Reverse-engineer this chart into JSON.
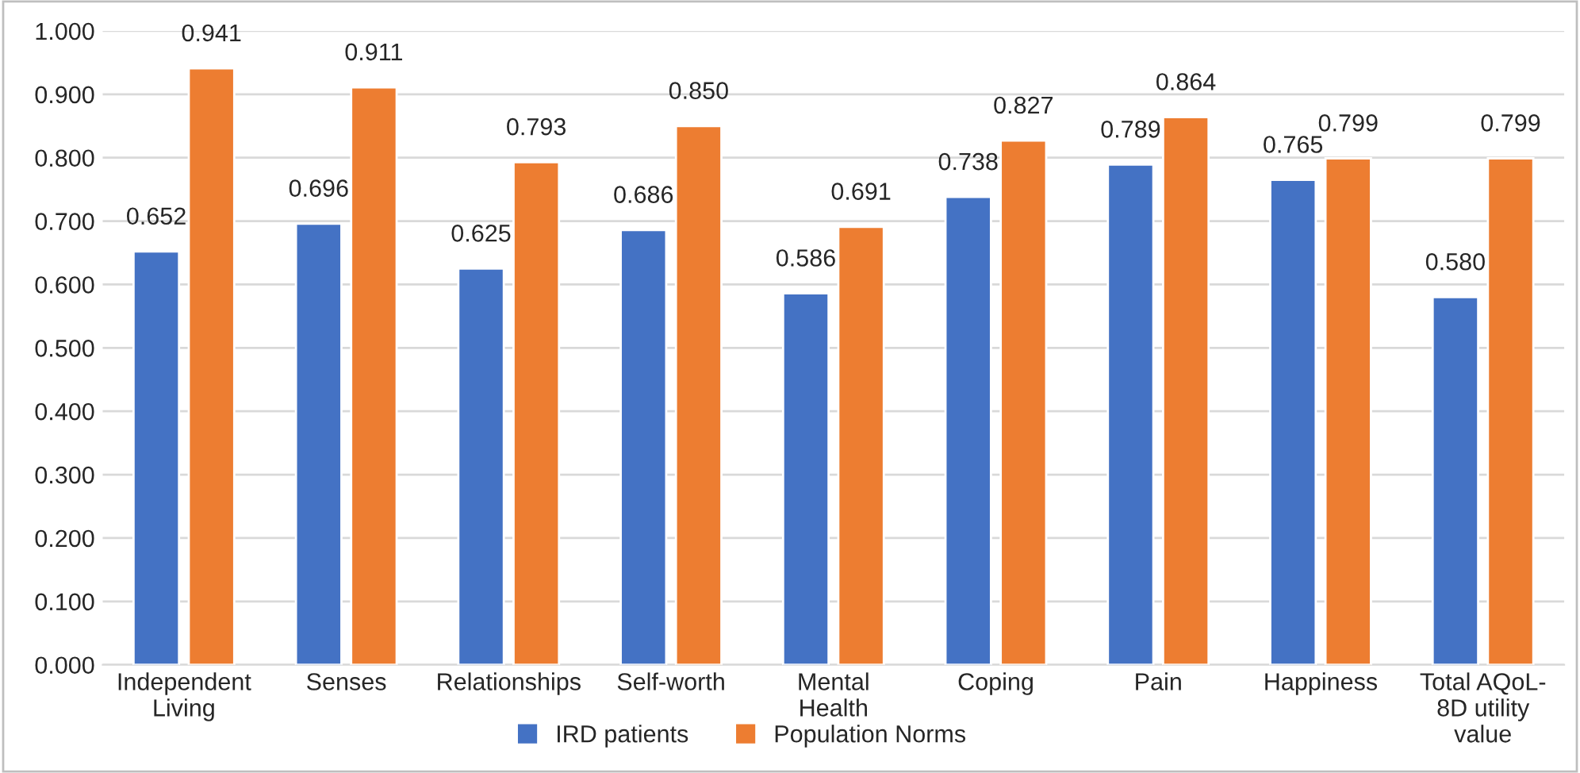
{
  "chart_data": {
    "type": "bar",
    "categories": [
      "Independent\nLiving",
      "Senses",
      "Relationships",
      "Self-worth",
      "Mental\nHealth",
      "Coping",
      "Pain",
      "Happiness",
      "Total AQoL-\n8D utility\nvalue"
    ],
    "series": [
      {
        "name": "IRD patients",
        "color": "#4472c4",
        "values": [
          0.652,
          0.696,
          0.625,
          0.686,
          0.586,
          0.738,
          0.789,
          0.765,
          0.58
        ],
        "value_labels": [
          "0.652",
          "0.696",
          "0.625",
          "0.686",
          "0.586",
          "0.738",
          "0.789",
          "0.765",
          "0.580"
        ]
      },
      {
        "name": "Population Norms",
        "color": "#ed7d31",
        "values": [
          0.941,
          0.911,
          0.793,
          0.85,
          0.691,
          0.827,
          0.864,
          0.799,
          0.799
        ],
        "value_labels": [
          "0.941",
          "0.911",
          "0.793",
          "0.850",
          "0.691",
          "0.827",
          "0.864",
          "0.799",
          "0.799"
        ]
      }
    ],
    "ylim": [
      0,
      1
    ],
    "yticks": [
      {
        "value": 0,
        "label": "0.000"
      },
      {
        "value": 0.1,
        "label": "0.100"
      },
      {
        "value": 0.2,
        "label": "0.200"
      },
      {
        "value": 0.3,
        "label": "0.300"
      },
      {
        "value": 0.4,
        "label": "0.400"
      },
      {
        "value": 0.5,
        "label": "0.500"
      },
      {
        "value": 0.6,
        "label": "0.600"
      },
      {
        "value": 0.7,
        "label": "0.700"
      },
      {
        "value": 0.8,
        "label": "0.800"
      },
      {
        "value": 0.9,
        "label": "0.900"
      },
      {
        "value": 1,
        "label": "1.000"
      }
    ],
    "grid": "y",
    "legend": "bottom"
  }
}
